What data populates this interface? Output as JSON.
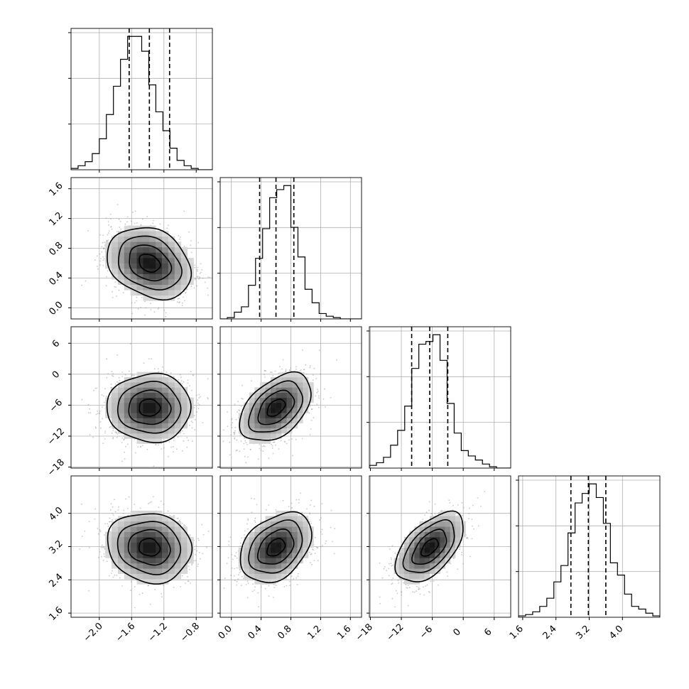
{
  "chart_data": {
    "type": "corner",
    "params": [
      {
        "ticks": [
          "−2.0",
          "−1.6",
          "−1.2",
          "−0.8"
        ],
        "tick_values": [
          -2.0,
          -1.6,
          -1.2,
          -0.8
        ],
        "range": [
          -2.35,
          -0.6
        ],
        "mean": -1.38,
        "sigma": 0.26,
        "quantiles": [
          -1.63,
          -1.38,
          -1.13
        ],
        "hist": [
          1,
          3,
          6,
          12,
          23,
          41,
          62,
          82,
          99,
          99,
          88,
          63,
          43,
          29,
          16,
          7,
          3,
          1,
          0,
          0
        ]
      },
      {
        "ticks": [
          "0.0",
          "0.4",
          "0.8",
          "1.2",
          "1.6"
        ],
        "tick_values": [
          0.0,
          0.4,
          0.8,
          1.2,
          1.6
        ],
        "range": [
          -0.15,
          1.75
        ],
        "mean": 0.6,
        "sigma": 0.24,
        "quantiles": [
          0.38,
          0.6,
          0.84
        ],
        "hist": [
          0,
          1,
          5,
          9,
          25,
          45,
          67,
          90,
          96,
          99,
          68,
          46,
          22,
          12,
          4,
          2,
          1,
          0,
          0,
          0
        ]
      },
      {
        "ticks": [
          "−18",
          "−12",
          "−6",
          "0",
          "6"
        ],
        "tick_values": [
          -18,
          -12,
          -6,
          0,
          6
        ],
        "range": [
          -18.2,
          9.2
        ],
        "mean": -6.5,
        "sigma": 3.3,
        "quantiles": [
          -10.0,
          -6.5,
          -3.0
        ],
        "hist": [
          2,
          4,
          8,
          17,
          28,
          46,
          74,
          92,
          94,
          99,
          80,
          48,
          26,
          13,
          9,
          6,
          3,
          1,
          0,
          0
        ]
      },
      {
        "ticks": [
          "1.6",
          "2.4",
          "3.2",
          "4.0"
        ],
        "tick_values": [
          1.6,
          2.4,
          3.2,
          4.0
        ],
        "range": [
          1.5,
          4.9
        ],
        "mean": 3.18,
        "sigma": 0.42,
        "quantiles": [
          2.76,
          3.18,
          3.6
        ],
        "hist": [
          1,
          2,
          4,
          8,
          14,
          26,
          38,
          62,
          84,
          91,
          98,
          88,
          69,
          40,
          31,
          17,
          8,
          6,
          3,
          1
        ]
      }
    ],
    "correlations": {
      "1-0": -0.25,
      "2-0": 0.0,
      "2-1": 0.45,
      "3-0": -0.1,
      "3-1": 0.35,
      "3-2": 0.55
    },
    "contour_levels_sigma": [
      0.5,
      1.0,
      1.5,
      2.0
    ],
    "grid": true,
    "colors": {
      "points": "#9a9a9a",
      "line": "#000000",
      "grid": "#b0b0b0"
    }
  }
}
